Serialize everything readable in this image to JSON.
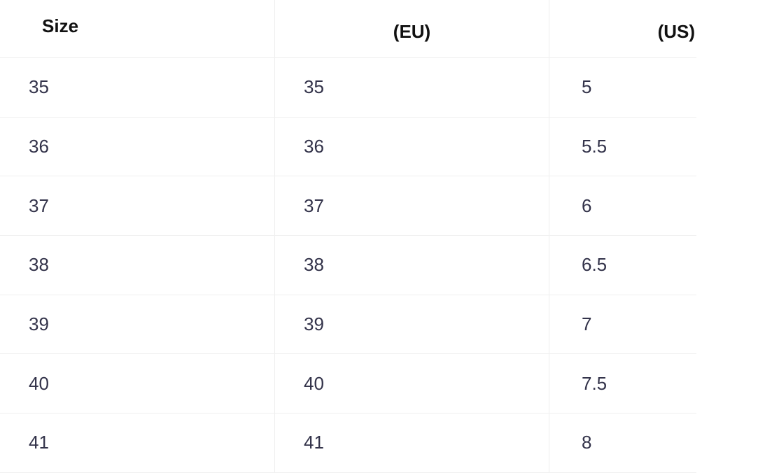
{
  "headers": [
    "Size",
    "(EU)",
    "(US)"
  ],
  "rows": [
    [
      "35",
      "35",
      "5"
    ],
    [
      "36",
      "36",
      "5.5"
    ],
    [
      "37",
      "37",
      "6"
    ],
    [
      "38",
      "38",
      "6.5"
    ],
    [
      "39",
      "39",
      "7"
    ],
    [
      "40",
      "40",
      "7.5"
    ],
    [
      "41",
      "41",
      "8"
    ]
  ]
}
